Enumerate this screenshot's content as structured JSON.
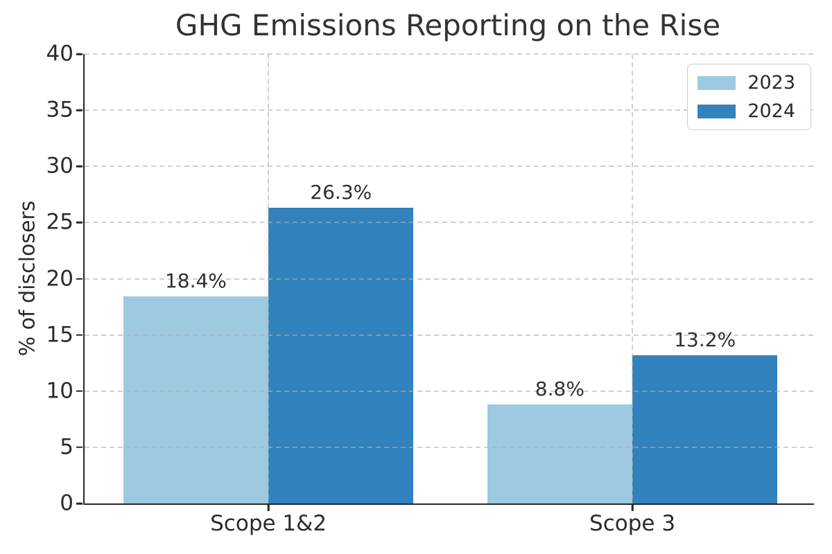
{
  "chart_data": {
    "type": "bar",
    "title": "GHG Emissions Reporting on the Rise",
    "categories": [
      "Scope 1&2",
      "Scope 3"
    ],
    "series": [
      {
        "name": "2023",
        "values": [
          18.4,
          8.8
        ],
        "labels": [
          "18.4%",
          "8.8%"
        ],
        "color": "#9ecae1"
      },
      {
        "name": "2024",
        "values": [
          26.3,
          13.2
        ],
        "labels": [
          "26.3%",
          "13.2%"
        ],
        "color": "#3182bd"
      }
    ],
    "xlabel": "",
    "ylabel": "% of disclosers",
    "ylim": [
      0,
      40
    ],
    "ytick_step": 5,
    "yticks": [
      0,
      5,
      10,
      15,
      20,
      25,
      30,
      35,
      40
    ],
    "grid": true,
    "grid_style": "dashed",
    "legend_position": "upper right",
    "colors": {
      "series_2023": "#9ecae1",
      "series_2024": "#3182bd",
      "text": "#2b2b2b",
      "spine": "#262626",
      "grid": "#cccccc",
      "background": "#ffffff"
    }
  }
}
